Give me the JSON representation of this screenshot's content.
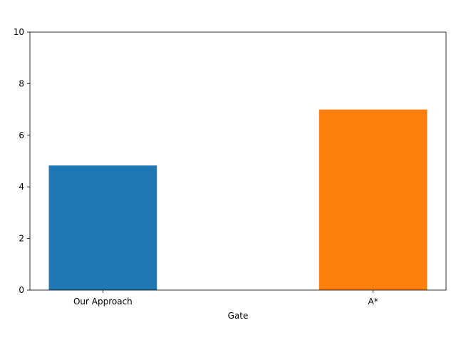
{
  "chart_data": {
    "type": "bar",
    "title": "",
    "xlabel": "Gate",
    "ylabel": "",
    "categories": [
      "Our Approach",
      "A*"
    ],
    "values": [
      4.83,
      7.0
    ],
    "colors": [
      "#1f77b4",
      "#ff7f0e"
    ],
    "ylim": [
      0,
      10
    ],
    "yticks": [
      0,
      2,
      4,
      6,
      8,
      10
    ],
    "grid": false,
    "legend": "none"
  }
}
